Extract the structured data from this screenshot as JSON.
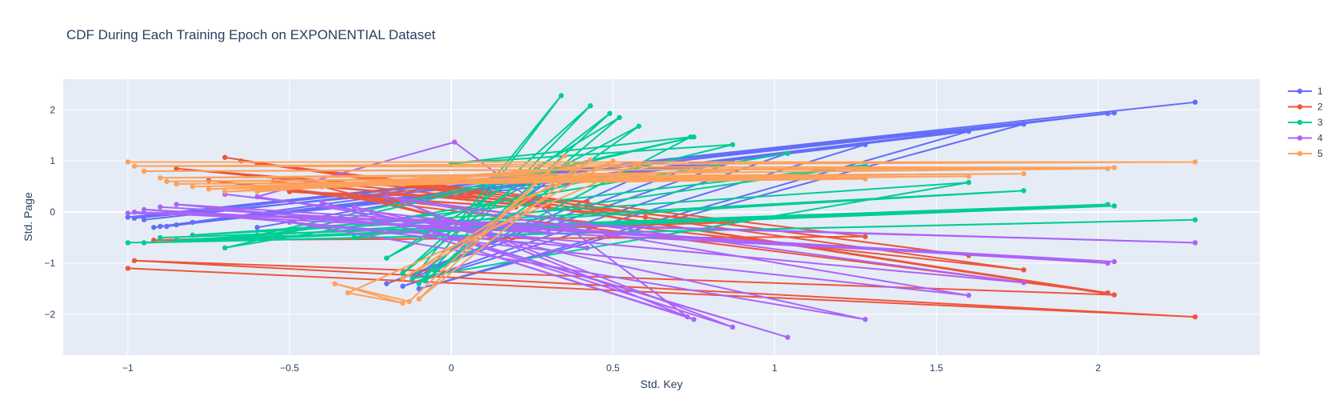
{
  "chart_data": {
    "type": "line",
    "title": "CDF During Each Training Epoch on EXPONENTIAL Dataset",
    "xlabel": "Std. Key",
    "ylabel": "Std. Page",
    "xlim": [
      -1.2,
      2.5
    ],
    "ylim": [
      -2.8,
      2.6
    ],
    "xticks": [
      -1,
      -0.5,
      0,
      0.5,
      1,
      1.5,
      2
    ],
    "xtick_labels": [
      "−1",
      "−0.5",
      "0",
      "0.5",
      "1",
      "1.5",
      "2"
    ],
    "yticks": [
      -2,
      -1,
      0,
      1,
      2
    ],
    "ytick_labels": [
      "−2",
      "−1",
      "0",
      "1",
      "2"
    ],
    "grid": true,
    "legend_position": "top-right",
    "series": [
      {
        "name": "1",
        "color": "#636efa",
        "x": [
          2.3,
          -1.0,
          2.05,
          -0.95,
          2.03,
          -0.88,
          1.77,
          -0.1,
          1.6,
          -0.92,
          1.28,
          -0.15,
          1.04,
          -0.85,
          0.87,
          -0.2,
          0.75,
          -0.98,
          0.42,
          -0.9,
          0.58,
          -0.12,
          0.3,
          -0.8,
          0.13,
          -0.6
        ],
        "y": [
          2.15,
          -0.1,
          1.94,
          -0.15,
          1.93,
          -0.28,
          1.72,
          -1.5,
          1.58,
          -0.3,
          1.32,
          -1.45,
          1.15,
          -0.25,
          0.98,
          -1.4,
          0.9,
          -0.12,
          0.85,
          -0.28,
          0.7,
          -1.3,
          0.6,
          -0.2,
          0.5,
          -0.3
        ]
      },
      {
        "name": "2",
        "color": "#ef553b",
        "x": [
          -1.0,
          2.3,
          -0.98,
          2.05,
          -0.7,
          2.03,
          -0.75,
          1.77,
          -0.6,
          1.6,
          -0.65,
          1.28,
          -0.92,
          0.87,
          -0.85,
          0.42,
          -0.5,
          0.2,
          -0.3,
          0.1,
          -0.4,
          0.3,
          -0.55,
          0.6
        ],
        "y": [
          -1.1,
          -2.05,
          -0.95,
          -1.62,
          1.07,
          -1.58,
          0.62,
          -1.13,
          0.95,
          -0.85,
          1.0,
          -0.48,
          -0.55,
          -0.2,
          0.85,
          0.2,
          0.4,
          0.1,
          0.3,
          -0.3,
          0.5,
          0.1,
          0.6,
          -0.1
        ]
      },
      {
        "name": "3",
        "color": "#00cc96",
        "x": [
          -1.0,
          2.3,
          -0.95,
          2.05,
          -0.9,
          2.03,
          -0.85,
          1.77,
          -0.8,
          1.6,
          -0.12,
          0.34,
          -0.1,
          0.43,
          -0.15,
          0.49,
          -0.08,
          0.52,
          -0.2,
          0.58,
          -0.05,
          0.74,
          0.0,
          0.87,
          -0.3,
          1.28,
          -0.6,
          0.75,
          -0.7,
          1.04
        ],
        "y": [
          -0.6,
          -0.15,
          -0.6,
          0.12,
          -0.5,
          0.15,
          -0.55,
          0.42,
          -0.45,
          0.58,
          -1.3,
          2.28,
          -1.4,
          2.08,
          -1.2,
          1.93,
          -1.35,
          1.85,
          -0.9,
          1.68,
          -1.15,
          1.47,
          0.95,
          1.32,
          -0.5,
          0.92,
          -0.45,
          1.47,
          -0.7,
          1.15
        ]
      },
      {
        "name": "4",
        "color": "#ab63fa",
        "x": [
          -1.0,
          2.3,
          -0.98,
          2.05,
          -0.9,
          2.03,
          -0.85,
          1.77,
          -0.2,
          1.6,
          -0.5,
          1.28,
          -0.3,
          1.04,
          -0.1,
          0.87,
          -0.15,
          0.75,
          -0.4,
          0.73,
          0.01,
          -0.6,
          0.42,
          -0.95,
          0.3,
          -0.7
        ],
        "y": [
          -0.02,
          -0.6,
          0.0,
          -0.97,
          0.1,
          -1.0,
          0.15,
          -1.38,
          0.3,
          -1.63,
          -0.2,
          -2.1,
          0.1,
          -2.45,
          -0.3,
          -2.25,
          0.2,
          -2.1,
          0.2,
          -2.05,
          1.37,
          0.3,
          -0.7,
          0.05,
          -0.4,
          0.35
        ]
      },
      {
        "name": "5",
        "color": "#fea15a",
        "x": [
          -1.0,
          2.3,
          -0.98,
          2.05,
          -0.95,
          2.03,
          -0.9,
          1.77,
          -0.88,
          1.6,
          -0.85,
          1.28,
          -0.8,
          1.04,
          -0.75,
          0.87,
          -0.7,
          0.58,
          -0.32,
          -0.15,
          -0.36,
          -0.13,
          0.35,
          -0.1,
          0.43,
          -0.15,
          0.5,
          0.2,
          0.3,
          -0.6
        ],
        "y": [
          0.98,
          0.98,
          0.9,
          0.87,
          0.8,
          0.85,
          0.67,
          0.75,
          0.6,
          0.7,
          0.55,
          0.65,
          0.5,
          0.7,
          0.45,
          0.82,
          0.4,
          0.95,
          -1.58,
          -1.78,
          -1.4,
          -1.75,
          1.1,
          -1.7,
          1.02,
          -1.3,
          1.0,
          0.2,
          0.8,
          0.4
        ]
      }
    ]
  }
}
